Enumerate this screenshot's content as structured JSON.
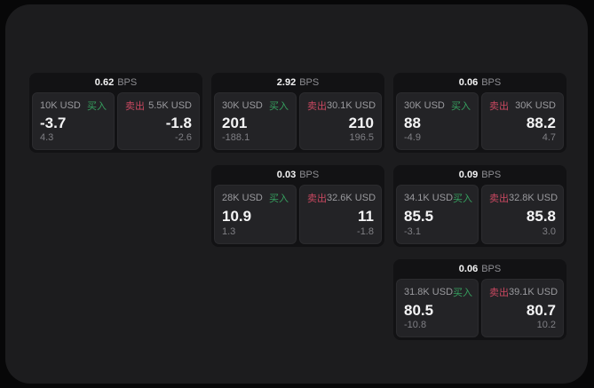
{
  "colors": {
    "buy_accent": "#36a05f",
    "sell_accent": "#c94860",
    "panel_background": "#1c1c1e",
    "card_background": "#121214",
    "subpanel_background": "#232326"
  },
  "labels": {
    "bps": "BPS",
    "buy": "买入",
    "sell": "卖出"
  },
  "cards": [
    {
      "row": 1,
      "col": 1,
      "bps": "0.62",
      "buy": {
        "amount": "10K USD",
        "price": "-3.7",
        "delta": "4.3"
      },
      "sell": {
        "amount": "5.5K USD",
        "price": "-1.8",
        "delta": "-2.6"
      }
    },
    {
      "row": 1,
      "col": 2,
      "bps": "2.92",
      "buy": {
        "amount": "30K USD",
        "price": "201",
        "delta": "-188.1"
      },
      "sell": {
        "amount": "30.1K USD",
        "price": "210",
        "delta": "196.5"
      }
    },
    {
      "row": 1,
      "col": 3,
      "bps": "0.06",
      "buy": {
        "amount": "30K USD",
        "price": "88",
        "delta": "-4.9"
      },
      "sell": {
        "amount": "30K USD",
        "price": "88.2",
        "delta": "4.7"
      }
    },
    {
      "row": 2,
      "col": 2,
      "bps": "0.03",
      "buy": {
        "amount": "28K USD",
        "price": "10.9",
        "delta": "1.3"
      },
      "sell": {
        "amount": "32.6K USD",
        "price": "11",
        "delta": "-1.8"
      }
    },
    {
      "row": 2,
      "col": 3,
      "bps": "0.09",
      "buy": {
        "amount": "34.1K USD",
        "price": "85.5",
        "delta": "-3.1"
      },
      "sell": {
        "amount": "32.8K USD",
        "price": "85.8",
        "delta": "3.0"
      }
    },
    {
      "row": 3,
      "col": 3,
      "bps": "0.06",
      "buy": {
        "amount": "31.8K USD",
        "price": "80.5",
        "delta": "-10.8"
      },
      "sell": {
        "amount": "39.1K USD",
        "price": "80.7",
        "delta": "10.2"
      }
    }
  ]
}
